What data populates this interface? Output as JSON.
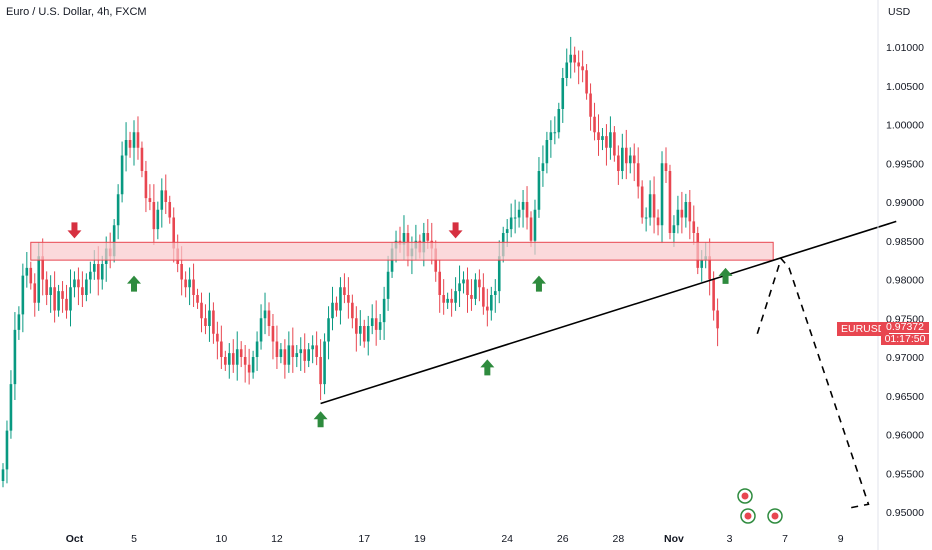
{
  "title": "Euro / U.S. Dollar, 4h, FXCM",
  "currency_unit": "USD",
  "symbol_badge": "EURUSD",
  "last_price": "0.97372",
  "countdown": "01:17:50",
  "colors": {
    "up": "#089981",
    "down": "#e84650",
    "zone_fill": "#f9c9cc",
    "zone_stroke": "#e84650",
    "green_arrow": "#2e8b3e",
    "red_arrow": "#d63040"
  },
  "chart_data": {
    "type": "candlestick",
    "symbol": "EURUSD",
    "timeframe": "4h",
    "ylim": [
      0.9435,
      1.0135
    ],
    "y_ticks": [
      "1.01000",
      "1.00500",
      "1.00000",
      "0.99500",
      "0.99000",
      "0.98500",
      "0.98000",
      "0.97500",
      "0.97000",
      "0.96500",
      "0.96000",
      "0.95500",
      "0.95000"
    ],
    "x_ticks": [
      {
        "label": "Oct",
        "bar": 18,
        "bold": true
      },
      {
        "label": "5",
        "bar": 33
      },
      {
        "label": "10",
        "bar": 55
      },
      {
        "label": "12",
        "bar": 69
      },
      {
        "label": "17",
        "bar": 91
      },
      {
        "label": "19",
        "bar": 105
      },
      {
        "label": "24",
        "bar": 127
      },
      {
        "label": "26",
        "bar": 141
      },
      {
        "label": "28",
        "bar": 155
      },
      {
        "label": "Nov",
        "bar": 169,
        "bold": true
      },
      {
        "label": "3",
        "bar": 183
      },
      {
        "label": "7",
        "bar": 197
      },
      {
        "label": "9",
        "bar": 211
      }
    ],
    "closes": [
      0.9555,
      0.9605,
      0.9665,
      0.9735,
      0.9755,
      0.9805,
      0.9815,
      0.9795,
      0.977,
      0.983,
      0.98,
      0.978,
      0.979,
      0.976,
      0.9785,
      0.9775,
      0.976,
      0.979,
      0.98,
      0.979,
      0.978,
      0.98,
      0.981,
      0.982,
      0.98,
      0.982,
      0.984,
      0.983,
      0.987,
      0.991,
      0.996,
      0.998,
      0.997,
      0.999,
      0.997,
      0.994,
      0.9905,
      0.99,
      0.9865,
      0.989,
      0.9915,
      0.99,
      0.988,
      0.984,
      0.982,
      0.98,
      0.979,
      0.98,
      0.978,
      0.977,
      0.975,
      0.974,
      0.976,
      0.973,
      0.972,
      0.97,
      0.969,
      0.9705,
      0.969,
      0.971,
      0.97,
      0.969,
      0.968,
      0.97,
      0.972,
      0.975,
      0.976,
      0.974,
      0.972,
      0.97,
      0.971,
      0.969,
      0.9715,
      0.97,
      0.9705,
      0.971,
      0.9695,
      0.971,
      0.9715,
      0.97,
      0.9665,
      0.972,
      0.975,
      0.977,
      0.976,
      0.979,
      0.978,
      0.977,
      0.975,
      0.973,
      0.974,
      0.972,
      0.974,
      0.975,
      0.9735,
      0.9745,
      0.9775,
      0.981,
      0.984,
      0.985,
      0.9845,
      0.986,
      0.983,
      0.984,
      0.985,
      0.9835,
      0.986,
      0.985,
      0.984,
      0.981,
      0.978,
      0.977,
      0.9775,
      0.977,
      0.9785,
      0.9795,
      0.98,
      0.978,
      0.9775,
      0.98,
      0.979,
      0.9765,
      0.976,
      0.978,
      0.9785,
      0.983,
      0.986,
      0.9865,
      0.988,
      0.988,
      0.989,
      0.99,
      0.988,
      0.985,
      0.989,
      0.994,
      0.995,
      0.998,
      0.999,
      0.999,
      1.002,
      1.006,
      1.008,
      1.009,
      1.008,
      1.0075,
      1.007,
      1.004,
      1.001,
      0.999,
      0.998,
      0.9985,
      0.997,
      0.999,
      0.996,
      0.994,
      0.997,
      0.995,
      0.996,
      0.995,
      0.992,
      0.988,
      0.988,
      0.991,
      0.988,
      0.987,
      0.995,
      0.994,
      0.986,
      0.987,
      0.989,
      0.988,
      0.99,
      0.9875,
      0.986,
      0.9815,
      0.9825,
      0.983,
      0.98,
      0.976,
      0.9737
    ],
    "resistance_zone": {
      "from": 0.9825,
      "to": 0.9848,
      "start_bar": 7,
      "end_bar": 194
    },
    "trendline": {
      "start_bar": 80,
      "start_price": 0.964,
      "end_bar": 225,
      "end_price": 0.9875
    },
    "projection": [
      {
        "bar": 190,
        "price": 0.973
      },
      {
        "bar": 196,
        "price": 0.9827
      },
      {
        "bar": 198,
        "price": 0.9815
      },
      {
        "bar": 218,
        "price": 0.951
      },
      {
        "bar": 213,
        "price": 0.9505
      }
    ],
    "green_arrows": [
      {
        "bar": 33,
        "price": 0.9805
      },
      {
        "bar": 80,
        "price": 0.963
      },
      {
        "bar": 122,
        "price": 0.9697
      },
      {
        "bar": 135,
        "price": 0.9805
      },
      {
        "bar": 182,
        "price": 0.9815
      }
    ],
    "red_arrows": [
      {
        "bar": 18,
        "price": 0.9853
      },
      {
        "bar": 114,
        "price": 0.9853
      }
    ]
  }
}
